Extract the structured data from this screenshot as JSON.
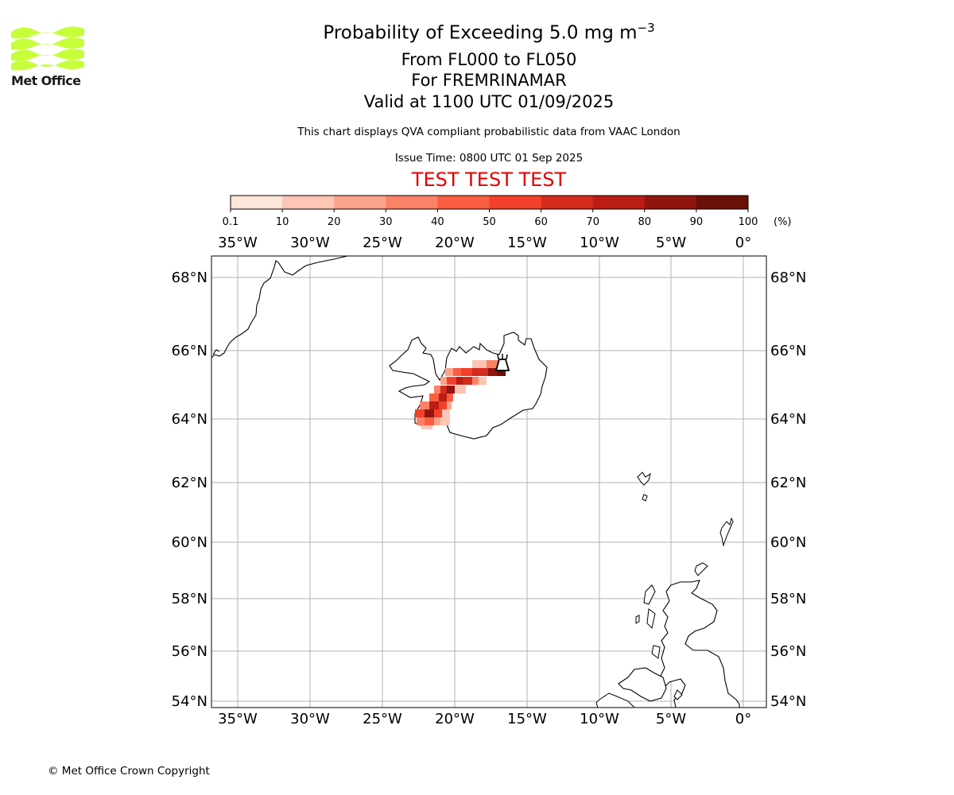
{
  "branding": {
    "logo_text": "Met Office",
    "logo_color": "#c6ff3a",
    "logo_icon": "met-office-wave-logo"
  },
  "header": {
    "title_prefix": "Probability of Exceeding 5.0 mg m",
    "title_superscript": "−3",
    "levels": "From FL000 to FL050",
    "volcano": "For FREMRINAMAR",
    "valid": "Valid at 1100 UTC 01/09/2025",
    "description": "This chart displays QVA compliant probabilistic data from VAAC London",
    "issue_time": "Issue Time: 0800 UTC 01 Sep 2025",
    "test_banner": "TEST TEST TEST",
    "test_color": "#e00000"
  },
  "colorbar": {
    "ticks": [
      "0.1",
      "10",
      "20",
      "30",
      "40",
      "50",
      "60",
      "70",
      "80",
      "90",
      "100"
    ],
    "unit": "(%)",
    "colors": [
      "#fee5d9",
      "#fcc5b4",
      "#fca38c",
      "#fc8267",
      "#fb5d41",
      "#f4402a",
      "#d42b1d",
      "#bb1c13",
      "#8f150e",
      "#6b1006"
    ]
  },
  "map": {
    "lon_labels": [
      "35°W",
      "30°W",
      "25°W",
      "20°W",
      "15°W",
      "10°W",
      "5°W",
      "0°"
    ],
    "lat_labels": [
      "68°N",
      "66°N",
      "64°N",
      "62°N",
      "60°N",
      "58°N",
      "56°N",
      "54°N"
    ],
    "volcano_marker": "volcano-icon",
    "grid_color": "#b0b0b0"
  },
  "footer": {
    "copyright": "© Met Office Crown Copyright"
  }
}
